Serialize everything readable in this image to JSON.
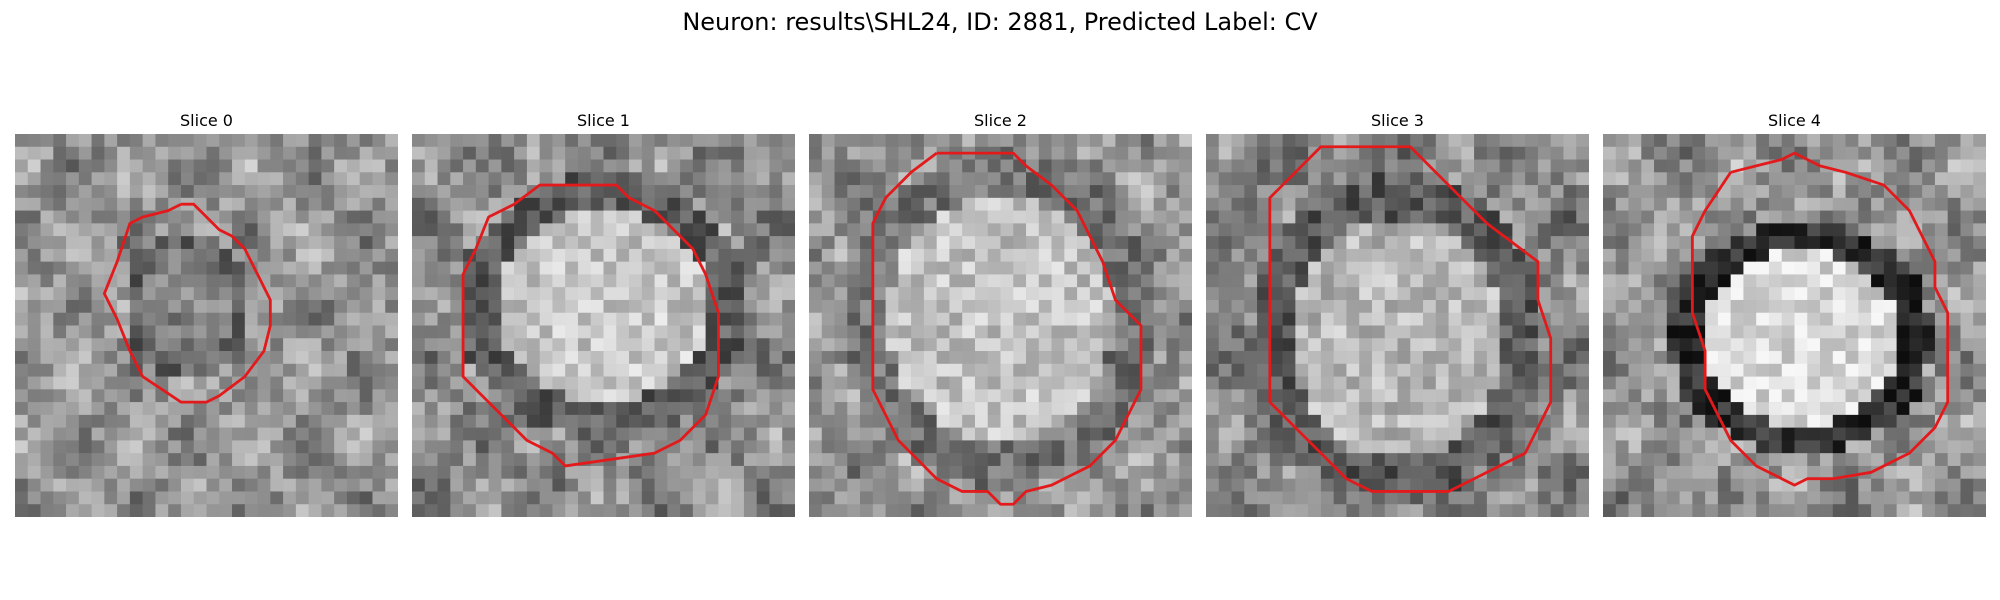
{
  "figure": {
    "title": "Neuron: results\\SHL24, ID: 2881, Predicted Label: CV"
  },
  "slices": [
    {
      "title": "Slice 0"
    },
    {
      "title": "Slice 1"
    },
    {
      "title": "Slice 2"
    },
    {
      "title": "Slice 3"
    },
    {
      "title": "Slice 4"
    }
  ],
  "colors": {
    "contour": "#e31a1c",
    "background": "#ffffff"
  }
}
